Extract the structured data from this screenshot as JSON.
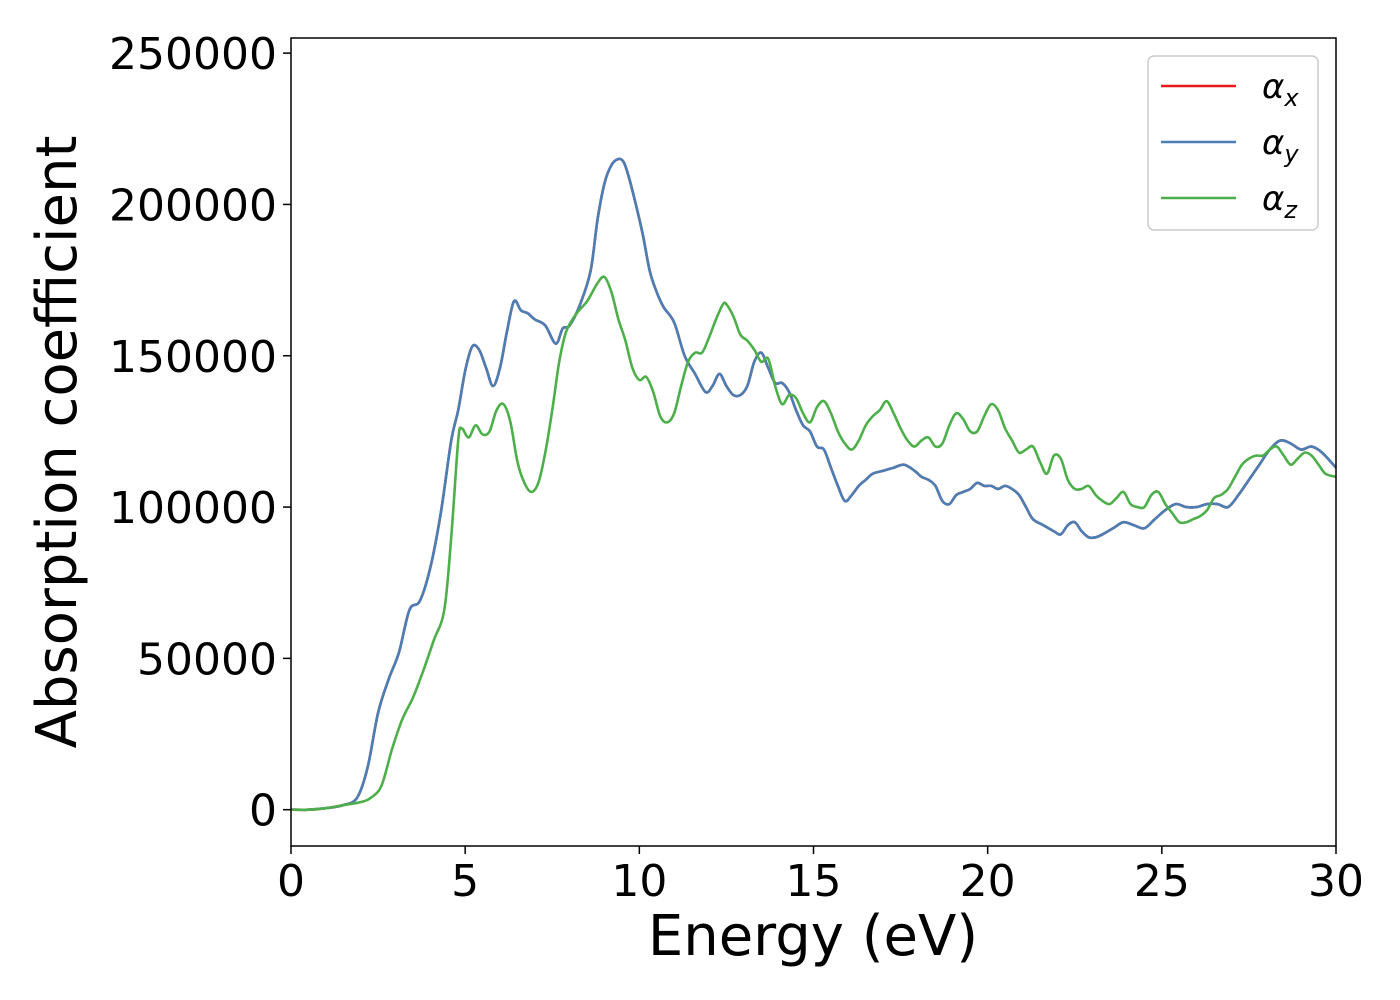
{
  "chart_data": {
    "type": "line",
    "title": "",
    "xlabel": "Energy (eV)",
    "ylabel": "Absorption coefficient",
    "xlim": [
      0,
      30
    ],
    "ylim": [
      -12000,
      255000
    ],
    "xticks": [
      "0",
      "5",
      "10",
      "15",
      "20",
      "25",
      "30"
    ],
    "yticks": [
      "0",
      "50000",
      "100000",
      "150000",
      "200000",
      "250000"
    ],
    "grid": false,
    "legend_position": "top-right",
    "series": [
      {
        "name": "αx",
        "symbol": "α",
        "subscript": "x",
        "color": "#e41a1c",
        "x": [
          0,
          0.5,
          1,
          1.5,
          1.9,
          2.2,
          2.5,
          2.8,
          3.1,
          3.4,
          3.7,
          4.0,
          4.3,
          4.6,
          4.8,
          5.0,
          5.2,
          5.4,
          5.6,
          5.8,
          6.0,
          6.2,
          6.4,
          6.6,
          6.8,
          7.0,
          7.3,
          7.6,
          7.8,
          8.0,
          8.3,
          8.6,
          8.8,
          9.0,
          9.2,
          9.4,
          9.55,
          9.7,
          9.9,
          10.1,
          10.3,
          10.5,
          10.7,
          11.0,
          11.3,
          11.6,
          11.9,
          12.1,
          12.3,
          12.5,
          12.7,
          12.9,
          13.1,
          13.3,
          13.5,
          13.7,
          13.9,
          14.1,
          14.3,
          14.5,
          14.7,
          14.9,
          15.1,
          15.3,
          15.5,
          15.7,
          15.9,
          16.1,
          16.3,
          16.5,
          16.7,
          17.0,
          17.3,
          17.6,
          17.9,
          18.1,
          18.3,
          18.5,
          18.7,
          18.9,
          19.1,
          19.3,
          19.5,
          19.7,
          19.9,
          20.1,
          20.3,
          20.5,
          20.7,
          20.9,
          21.1,
          21.3,
          21.6,
          21.9,
          22.1,
          22.3,
          22.5,
          22.7,
          22.9,
          23.1,
          23.3,
          23.6,
          23.9,
          24.2,
          24.5,
          24.8,
          25.1,
          25.4,
          25.7,
          26.0,
          26.3,
          26.6,
          26.9,
          27.2,
          27.5,
          27.8,
          28.1,
          28.4,
          28.7,
          29.0,
          29.3,
          29.6,
          30.0
        ],
        "y": [
          0,
          0,
          500,
          1500,
          4000,
          14000,
          32000,
          43000,
          52000,
          66000,
          69000,
          80000,
          98000,
          122000,
          132000,
          145000,
          153000,
          152000,
          146000,
          140000,
          146000,
          158000,
          168000,
          165000,
          164000,
          162000,
          160000,
          154000,
          159000,
          160000,
          167000,
          178000,
          195000,
          207000,
          213000,
          215000,
          214000,
          209000,
          200000,
          190000,
          178000,
          171000,
          166000,
          161000,
          150000,
          144000,
          138000,
          140000,
          144000,
          140000,
          137000,
          137000,
          140000,
          148000,
          151000,
          146000,
          141000,
          141000,
          138000,
          132000,
          127000,
          125000,
          120000,
          119000,
          113000,
          107000,
          102000,
          104000,
          107000,
          109000,
          111000,
          112000,
          113000,
          114000,
          112000,
          110000,
          109000,
          107000,
          102000,
          101000,
          104000,
          105000,
          106000,
          108000,
          107000,
          107000,
          106000,
          107000,
          106000,
          104000,
          100000,
          96000,
          94000,
          92000,
          91000,
          94000,
          95000,
          92000,
          90000,
          90000,
          91000,
          93000,
          95000,
          94000,
          93000,
          96000,
          99000,
          101000,
          100000,
          100000,
          101000,
          101000,
          100000,
          104000,
          109000,
          114000,
          119000,
          122000,
          121000,
          119000,
          120000,
          118000,
          113000
        ]
      },
      {
        "name": "αy",
        "symbol": "α",
        "subscript": "y",
        "color": "#4a7fb5",
        "x": [
          0,
          0.5,
          1,
          1.5,
          1.9,
          2.2,
          2.5,
          2.8,
          3.1,
          3.4,
          3.7,
          4.0,
          4.3,
          4.6,
          4.8,
          5.0,
          5.2,
          5.4,
          5.6,
          5.8,
          6.0,
          6.2,
          6.4,
          6.6,
          6.8,
          7.0,
          7.3,
          7.6,
          7.8,
          8.0,
          8.3,
          8.6,
          8.8,
          9.0,
          9.2,
          9.4,
          9.55,
          9.7,
          9.9,
          10.1,
          10.3,
          10.5,
          10.7,
          11.0,
          11.3,
          11.6,
          11.9,
          12.1,
          12.3,
          12.5,
          12.7,
          12.9,
          13.1,
          13.3,
          13.5,
          13.7,
          13.9,
          14.1,
          14.3,
          14.5,
          14.7,
          14.9,
          15.1,
          15.3,
          15.5,
          15.7,
          15.9,
          16.1,
          16.3,
          16.5,
          16.7,
          17.0,
          17.3,
          17.6,
          17.9,
          18.1,
          18.3,
          18.5,
          18.7,
          18.9,
          19.1,
          19.3,
          19.5,
          19.7,
          19.9,
          20.1,
          20.3,
          20.5,
          20.7,
          20.9,
          21.1,
          21.3,
          21.6,
          21.9,
          22.1,
          22.3,
          22.5,
          22.7,
          22.9,
          23.1,
          23.3,
          23.6,
          23.9,
          24.2,
          24.5,
          24.8,
          25.1,
          25.4,
          25.7,
          26.0,
          26.3,
          26.6,
          26.9,
          27.2,
          27.5,
          27.8,
          28.1,
          28.4,
          28.7,
          29.0,
          29.3,
          29.6,
          30.0
        ],
        "y": [
          0,
          0,
          500,
          1500,
          4000,
          14000,
          32000,
          43000,
          52000,
          66000,
          69000,
          80000,
          98000,
          122000,
          132000,
          145000,
          153000,
          152000,
          146000,
          140000,
          146000,
          158000,
          168000,
          165000,
          164000,
          162000,
          160000,
          154000,
          159000,
          160000,
          167000,
          178000,
          195000,
          207000,
          213000,
          215000,
          214000,
          209000,
          200000,
          190000,
          178000,
          171000,
          166000,
          161000,
          150000,
          144000,
          138000,
          140000,
          144000,
          140000,
          137000,
          137000,
          140000,
          148000,
          151000,
          146000,
          141000,
          141000,
          138000,
          132000,
          127000,
          125000,
          120000,
          119000,
          113000,
          107000,
          102000,
          104000,
          107000,
          109000,
          111000,
          112000,
          113000,
          114000,
          112000,
          110000,
          109000,
          107000,
          102000,
          101000,
          104000,
          105000,
          106000,
          108000,
          107000,
          107000,
          106000,
          107000,
          106000,
          104000,
          100000,
          96000,
          94000,
          92000,
          91000,
          94000,
          95000,
          92000,
          90000,
          90000,
          91000,
          93000,
          95000,
          94000,
          93000,
          96000,
          99000,
          101000,
          100000,
          100000,
          101000,
          101000,
          100000,
          104000,
          109000,
          114000,
          119000,
          122000,
          121000,
          119000,
          120000,
          118000,
          113000
        ]
      },
      {
        "name": "αz",
        "symbol": "α",
        "subscript": "z",
        "color": "#4daf4a",
        "x": [
          0,
          0.5,
          1,
          1.5,
          2.0,
          2.3,
          2.6,
          2.9,
          3.2,
          3.5,
          3.8,
          4.1,
          4.4,
          4.6,
          4.8,
          4.9,
          5.1,
          5.3,
          5.5,
          5.7,
          5.9,
          6.1,
          6.3,
          6.5,
          6.7,
          6.9,
          7.1,
          7.3,
          7.5,
          7.7,
          7.9,
          8.2,
          8.5,
          8.8,
          9.0,
          9.2,
          9.4,
          9.6,
          9.8,
          10.0,
          10.2,
          10.4,
          10.6,
          10.8,
          11.0,
          11.2,
          11.4,
          11.6,
          11.8,
          12.0,
          12.2,
          12.4,
          12.5,
          12.7,
          12.9,
          13.1,
          13.3,
          13.5,
          13.7,
          13.9,
          14.1,
          14.3,
          14.5,
          14.7,
          14.9,
          15.1,
          15.3,
          15.5,
          15.7,
          15.9,
          16.1,
          16.3,
          16.5,
          16.7,
          16.9,
          17.1,
          17.3,
          17.5,
          17.7,
          17.9,
          18.1,
          18.3,
          18.5,
          18.7,
          18.9,
          19.1,
          19.3,
          19.5,
          19.7,
          19.9,
          20.1,
          20.3,
          20.5,
          20.7,
          20.9,
          21.1,
          21.3,
          21.5,
          21.7,
          21.9,
          22.1,
          22.3,
          22.5,
          22.7,
          22.9,
          23.1,
          23.3,
          23.5,
          23.7,
          23.9,
          24.1,
          24.3,
          24.5,
          24.7,
          24.9,
          25.1,
          25.3,
          25.5,
          25.7,
          25.9,
          26.1,
          26.3,
          26.5,
          26.7,
          26.9,
          27.1,
          27.3,
          27.5,
          27.7,
          27.9,
          28.1,
          28.3,
          28.5,
          28.7,
          28.9,
          29.1,
          29.3,
          29.5,
          29.7,
          30.0
        ],
        "y": [
          0,
          0,
          500,
          1500,
          2500,
          4000,
          8000,
          20000,
          30000,
          37000,
          46000,
          56000,
          66000,
          90000,
          122000,
          126000,
          123000,
          127000,
          124000,
          125000,
          132000,
          134000,
          128000,
          115000,
          108000,
          105000,
          108000,
          118000,
          132000,
          148000,
          158000,
          164000,
          168000,
          174000,
          176000,
          171000,
          162000,
          155000,
          146000,
          142000,
          143000,
          138000,
          130000,
          128000,
          131000,
          140000,
          148000,
          151000,
          151000,
          156000,
          162000,
          167000,
          167000,
          163000,
          157000,
          155000,
          152000,
          148000,
          149000,
          140000,
          134000,
          137000,
          136000,
          131000,
          128000,
          133000,
          135000,
          131000,
          125000,
          121000,
          119000,
          122000,
          127000,
          130000,
          132000,
          135000,
          131000,
          126000,
          122000,
          120000,
          122000,
          123000,
          120000,
          121000,
          127000,
          131000,
          129000,
          125000,
          125000,
          130000,
          134000,
          132000,
          126000,
          122000,
          118000,
          119000,
          120000,
          115000,
          111000,
          117000,
          116000,
          109000,
          106000,
          106000,
          107000,
          104000,
          102000,
          101000,
          103000,
          105000,
          101000,
          100000,
          100000,
          104000,
          105000,
          101000,
          98000,
          95000,
          95000,
          96000,
          97000,
          99000,
          103000,
          104000,
          106000,
          110000,
          114000,
          116000,
          117000,
          117000,
          119000,
          120000,
          117000,
          114000,
          116000,
          118000,
          117000,
          114000,
          111000,
          110000
        ]
      }
    ]
  }
}
